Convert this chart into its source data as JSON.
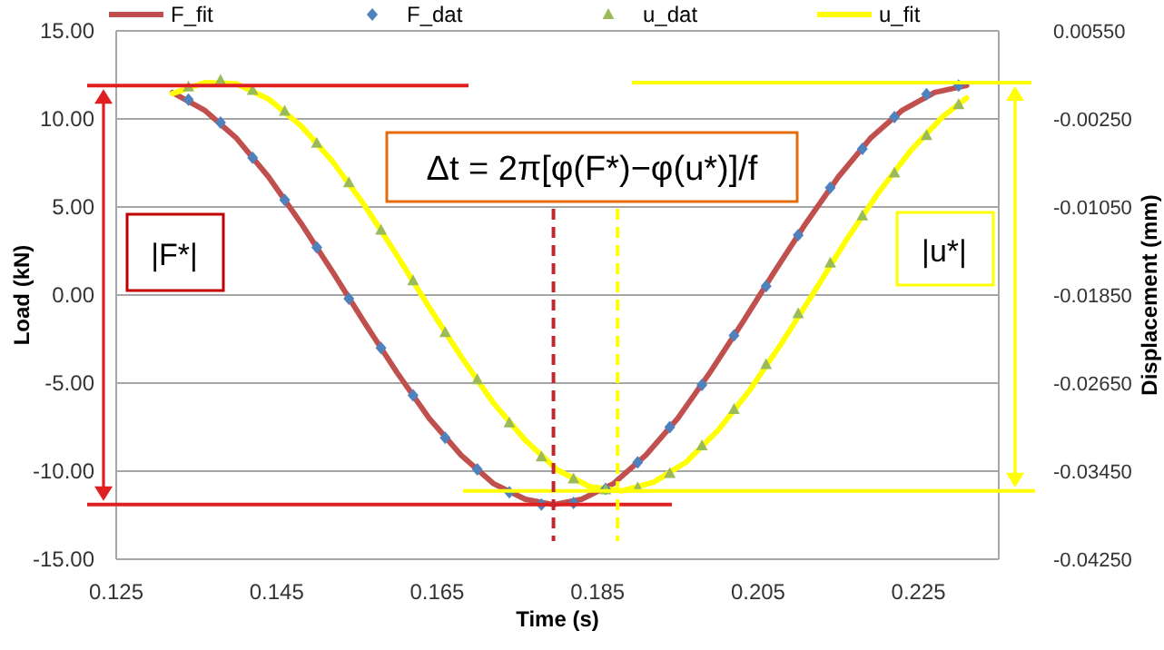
{
  "chart_data": {
    "type": "line",
    "xlabel": "Time (s)",
    "ylabel": "Load (kN)",
    "y2label": "Displacement (mm)",
    "xlim": [
      0.125,
      0.235
    ],
    "xticks": [
      0.125,
      0.145,
      0.165,
      0.185,
      0.205,
      0.225
    ],
    "ylim": [
      -15,
      15
    ],
    "yticks": [
      {
        "value": -15,
        "label": "-15.00"
      },
      {
        "value": -10,
        "label": "-10.00"
      },
      {
        "value": -5,
        "label": "-5.00"
      },
      {
        "value": 0,
        "label": "0.00"
      },
      {
        "value": 5,
        "label": "5.00"
      },
      {
        "value": 10,
        "label": "10.00"
      },
      {
        "value": 15,
        "label": "15.00"
      }
    ],
    "y2lim": [
      -0.0425,
      0.0055
    ],
    "y2ticks": [
      {
        "value": -0.0425,
        "label": "-0.04250"
      },
      {
        "value": -0.0345,
        "label": "-0.03450"
      },
      {
        "value": -0.0265,
        "label": "-0.02650"
      },
      {
        "value": -0.0185,
        "label": "-0.01850"
      },
      {
        "value": -0.0105,
        "label": "-0.01050"
      },
      {
        "value": -0.0025,
        "label": "-0.00250"
      },
      {
        "value": 0.0055,
        "label": "0.00550"
      }
    ],
    "grid": "y",
    "legend": "top",
    "series": [
      {
        "name": "F_fit",
        "marker": "none",
        "color": "#c0504d",
        "x": [
          0.132,
          0.136,
          0.14,
          0.144,
          0.148,
          0.152,
          0.156,
          0.16,
          0.164,
          0.168,
          0.172,
          0.176,
          0.1795,
          0.183,
          0.187,
          0.191,
          0.195,
          0.199,
          0.203,
          0.207,
          0.211,
          0.215,
          0.219,
          0.223,
          0.227,
          0.231
        ],
        "values": [
          11.5,
          10.5,
          8.9,
          6.7,
          4.1,
          1.3,
          -1.6,
          -4.4,
          -7.0,
          -9.1,
          -10.7,
          -11.6,
          -11.9,
          -11.6,
          -10.7,
          -9.1,
          -7.0,
          -4.4,
          -1.6,
          1.3,
          4.1,
          6.7,
          8.9,
          10.5,
          11.5,
          11.9
        ]
      },
      {
        "name": "F_dat",
        "type": "scatter",
        "marker": "diamond",
        "color": "#4f81bd",
        "x": [
          0.134,
          0.138,
          0.142,
          0.146,
          0.15,
          0.154,
          0.158,
          0.162,
          0.166,
          0.17,
          0.174,
          0.178,
          0.182,
          0.186,
          0.19,
          0.194,
          0.198,
          0.202,
          0.206,
          0.21,
          0.214,
          0.218,
          0.222,
          0.226,
          0.23
        ],
        "values": [
          11.1,
          9.8,
          7.8,
          5.4,
          2.7,
          -0.2,
          -3.0,
          -5.7,
          -8.1,
          -9.9,
          -11.2,
          -11.9,
          -11.8,
          -11.0,
          -9.5,
          -7.5,
          -5.1,
          -2.3,
          0.5,
          3.4,
          6.1,
          8.3,
          10.1,
          11.4,
          11.9
        ]
      },
      {
        "name": "u_dat",
        "type": "scatter",
        "marker": "triangle",
        "color": "#9bbb59",
        "axis": "y2",
        "x": [
          0.134,
          0.138,
          0.142,
          0.146,
          0.15,
          0.154,
          0.158,
          0.162,
          0.166,
          0.17,
          0.174,
          0.178,
          0.182,
          0.186,
          0.19,
          0.194,
          0.198,
          0.202,
          0.206,
          0.21,
          0.214,
          0.218,
          0.222,
          0.226,
          0.23
        ],
        "values": [
          0.0004,
          0.001,
          0.0001,
          -0.0018,
          -0.0047,
          -0.0083,
          -0.0126,
          -0.0172,
          -0.0219,
          -0.0262,
          -0.0301,
          -0.0332,
          -0.0352,
          -0.0362,
          -0.036,
          -0.0347,
          -0.0322,
          -0.0289,
          -0.0248,
          -0.0202,
          -0.0156,
          -0.0113,
          -0.0074,
          -0.004,
          -0.0012
        ]
      },
      {
        "name": "u_fit",
        "marker": "none",
        "color": "#ffff00",
        "axis": "y2",
        "x": [
          0.132,
          0.136,
          0.14,
          0.144,
          0.148,
          0.152,
          0.156,
          0.16,
          0.164,
          0.168,
          0.172,
          0.176,
          0.18,
          0.184,
          0.188,
          0.192,
          0.196,
          0.2,
          0.204,
          0.208,
          0.212,
          0.216,
          0.22,
          0.224,
          0.228,
          0.231
        ],
        "values": [
          -0.0002,
          0.0008,
          0.0007,
          -0.0007,
          -0.0031,
          -0.0064,
          -0.0104,
          -0.0149,
          -0.0196,
          -0.0241,
          -0.0283,
          -0.0317,
          -0.0344,
          -0.0359,
          -0.0363,
          -0.0355,
          -0.0337,
          -0.0308,
          -0.0271,
          -0.0228,
          -0.0182,
          -0.0135,
          -0.0092,
          -0.0054,
          -0.0023,
          -0.0006
        ]
      }
    ],
    "ref_lines": [
      {
        "axis": "y",
        "value": 11.9,
        "color": "#e02020",
        "line_style": "solid"
      },
      {
        "axis": "y",
        "value": -11.9,
        "color": "#e02020",
        "line_style": "solid"
      },
      {
        "axis": "y2",
        "value": 0.0008,
        "color": "#ffff00",
        "line_style": "solid"
      },
      {
        "axis": "y2",
        "value": -0.0363,
        "color": "#ffff00",
        "line_style": "solid"
      },
      {
        "axis": "x",
        "value": 0.1795,
        "color": "#c0282d",
        "line_style": "dashed"
      },
      {
        "axis": "x",
        "value": 0.1875,
        "color": "#ffff00",
        "line_style": "dashed"
      }
    ],
    "annotations": [
      "Δt = 2π[φ(F*)−φ(u*)]/f",
      "|F*|",
      "|u*|"
    ]
  }
}
